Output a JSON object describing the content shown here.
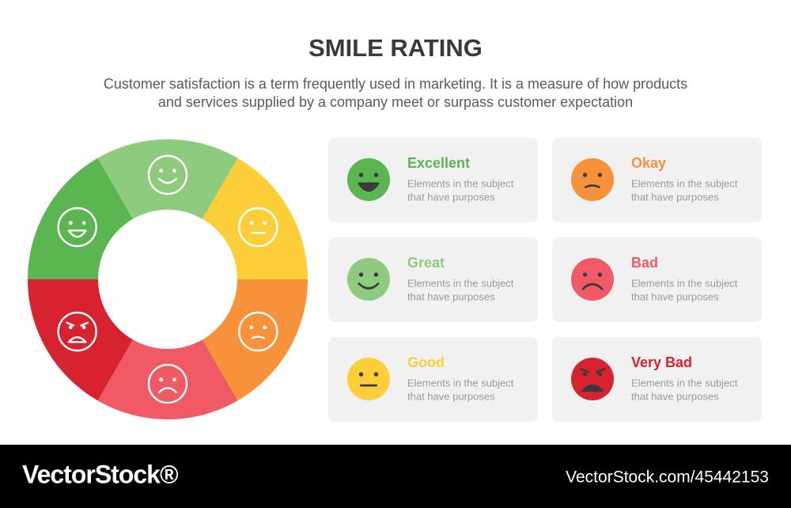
{
  "header": {
    "title": "SMILE RATING",
    "subtitle": [
      "Customer satisfaction is a term frequently used in marketing. It is a measure of how products",
      "and services supplied by a company meet or surpass customer expectation"
    ]
  },
  "items": [
    {
      "label": "Excellent",
      "color": "#5bb550",
      "description": [
        "Elements in the subject",
        "that have purposes"
      ]
    },
    {
      "label": "Great",
      "color": "#8fcb7f",
      "description": [
        "Elements in the subject",
        "that have purposes"
      ]
    },
    {
      "label": "Good",
      "color": "#fccf3a",
      "description": [
        "Elements in the subject",
        "that have purposes"
      ]
    },
    {
      "label": "Okay",
      "color": "#f7923a",
      "description": [
        "Elements in the subject",
        "that have purposes"
      ]
    },
    {
      "label": "Bad",
      "color": "#ef5a64",
      "description": [
        "Elements in the subject",
        "that have purposes"
      ]
    },
    {
      "label": "Very Bad",
      "color": "#d7232f",
      "description": [
        "Elements in the subject",
        "that have purposes"
      ]
    }
  ],
  "footer": {
    "brand": "VectorStock®",
    "id": "VectorStock.com/45442153"
  }
}
